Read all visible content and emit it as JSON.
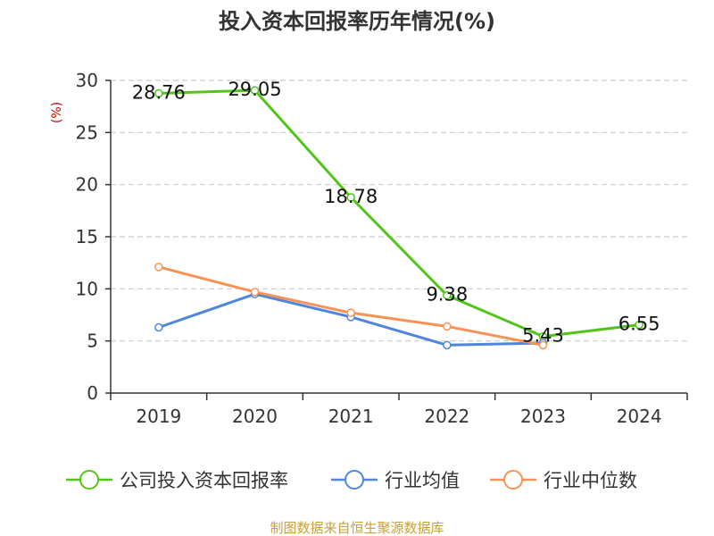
{
  "chart_data": {
    "type": "line",
    "title": "投入资本回报率历年情况(%)",
    "ylabel": "(%)",
    "xlabel": "",
    "categories": [
      "2019",
      "2020",
      "2021",
      "2022",
      "2023",
      "2024"
    ],
    "ylim": [
      0,
      30
    ],
    "yticks": [
      0,
      5,
      10,
      15,
      20,
      25,
      30
    ],
    "grid": true,
    "legend_position": "bottom",
    "series": [
      {
        "name": "公司投入资本回报率",
        "color": "#52c41a",
        "values": [
          28.76,
          29.05,
          18.78,
          9.38,
          5.43,
          6.55
        ],
        "labels": [
          "28.76",
          "29.05",
          "18.78",
          "9.38",
          "5.43",
          "6.55"
        ]
      },
      {
        "name": "行业均值",
        "color": "#4f86dc",
        "values": [
          6.3,
          9.5,
          7.3,
          4.6,
          4.8,
          null
        ]
      },
      {
        "name": "行业中位数",
        "color": "#f79256",
        "values": [
          12.1,
          9.7,
          7.7,
          6.4,
          4.6,
          null
        ]
      }
    ]
  },
  "source": "制图数据来自恒生聚源数据库"
}
